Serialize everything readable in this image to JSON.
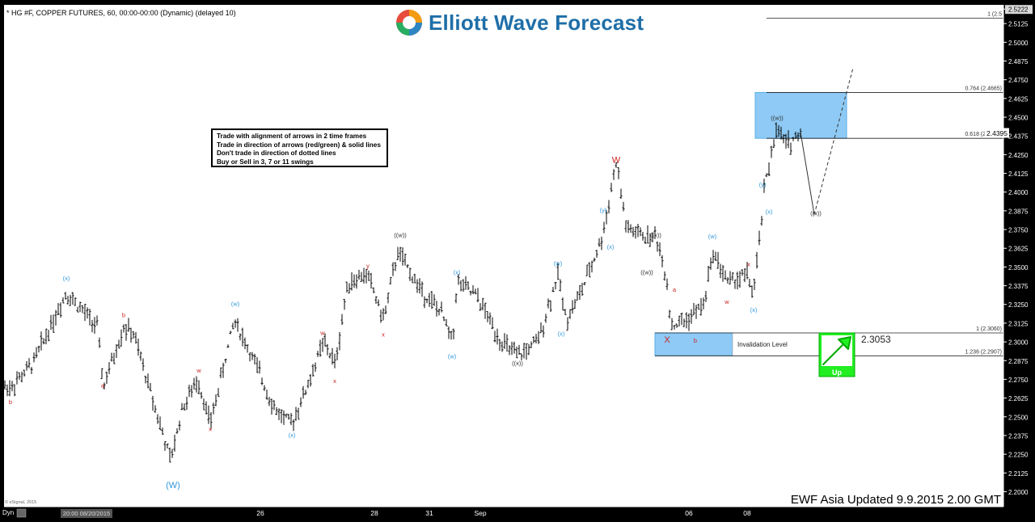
{
  "header": {
    "symbol_title": "* HG #F, COPPER FUTURES, 60, 00:00-00:00 (Dynamic) (delayed 10)",
    "brand": "Elliott Wave Forecast"
  },
  "legend": {
    "lines": [
      "Trade with alignment of arrows in 2 time frames",
      "Trade in direction of arrows (red/green) & solid lines",
      "Don't trade in direction of dotted lines",
      "Buy or Sell in 3, 7 or 11 swings"
    ]
  },
  "footer": {
    "update_text": "EWF Asia Updated 9.9.2015 2.00 GMT",
    "copyright": "© eSignal, 2015",
    "dyn_label": "Dyn",
    "cursor_label": "20:00 08/20/2015"
  },
  "colors": {
    "background": "#ffffff",
    "price_bars": "#000000",
    "wave_red": "#cc2222",
    "wave_blue": "#3399dd",
    "target_box": "#8ecaf5",
    "up_arrow": "#22ee22"
  },
  "chart_data": {
    "type": "bar",
    "subtype": "ohlc-intraday",
    "ylim": [
      2.19,
      2.525
    ],
    "y_ticks": [
      "2.5222",
      "2.5125",
      "2.5000",
      "2.4875",
      "2.4750",
      "2.4625",
      "2.4500",
      "2.4375",
      "2.4250",
      "2.4125",
      "2.4000",
      "2.3875",
      "2.3750",
      "2.3625",
      "2.3500",
      "2.3375",
      "2.3250",
      "2.3125",
      "2.3000",
      "2.2875",
      "2.2750",
      "2.2625",
      "2.2500",
      "2.2375",
      "2.2250",
      "2.2125",
      "2.2000"
    ],
    "x_ticks": [
      "26",
      "28",
      "31",
      "Sep",
      "06",
      "08"
    ],
    "last_price_label": "2.4395",
    "last_price": 2.4395,
    "price_path": [
      {
        "t": 0,
        "p": 2.28
      },
      {
        "t": 5,
        "p": 2.27
      },
      {
        "t": 14,
        "p": 2.27
      },
      {
        "t": 40,
        "p": 2.285
      },
      {
        "t": 82,
        "p": 2.333
      },
      {
        "t": 100,
        "p": 2.322
      },
      {
        "t": 120,
        "p": 2.31
      },
      {
        "t": 128,
        "p": 2.27
      },
      {
        "t": 153,
        "p": 2.31
      },
      {
        "t": 165,
        "p": 2.305
      },
      {
        "t": 190,
        "p": 2.26
      },
      {
        "t": 211,
        "p": 2.22
      },
      {
        "t": 225,
        "p": 2.255
      },
      {
        "t": 245,
        "p": 2.275
      },
      {
        "t": 260,
        "p": 2.245
      },
      {
        "t": 290,
        "p": 2.315
      },
      {
        "t": 320,
        "p": 2.28
      },
      {
        "t": 340,
        "p": 2.255
      },
      {
        "t": 360,
        "p": 2.245
      },
      {
        "t": 380,
        "p": 2.27
      },
      {
        "t": 400,
        "p": 2.3
      },
      {
        "t": 415,
        "p": 2.285
      },
      {
        "t": 430,
        "p": 2.34
      },
      {
        "t": 455,
        "p": 2.345
      },
      {
        "t": 474,
        "p": 2.315
      },
      {
        "t": 492,
        "p": 2.36
      },
      {
        "t": 520,
        "p": 2.335
      },
      {
        "t": 545,
        "p": 2.32
      },
      {
        "t": 560,
        "p": 2.3
      },
      {
        "t": 565,
        "p": 2.34
      },
      {
        "t": 590,
        "p": 2.33
      },
      {
        "t": 620,
        "p": 2.3
      },
      {
        "t": 640,
        "p": 2.29
      },
      {
        "t": 665,
        "p": 2.3
      },
      {
        "t": 690,
        "p": 2.345
      },
      {
        "t": 700,
        "p": 2.315
      },
      {
        "t": 720,
        "p": 2.335
      },
      {
        "t": 745,
        "p": 2.37
      },
      {
        "t": 762,
        "p": 2.42
      },
      {
        "t": 775,
        "p": 2.375
      },
      {
        "t": 800,
        "p": 2.37
      },
      {
        "t": 812,
        "p": 2.37
      },
      {
        "t": 825,
        "p": 2.34
      },
      {
        "t": 830,
        "p": 2.31
      },
      {
        "t": 850,
        "p": 2.315
      },
      {
        "t": 870,
        "p": 2.325
      },
      {
        "t": 882,
        "p": 2.36
      },
      {
        "t": 900,
        "p": 2.34
      },
      {
        "t": 925,
        "p": 2.345
      },
      {
        "t": 932,
        "p": 2.33
      },
      {
        "t": 945,
        "p": 2.4
      },
      {
        "t": 955,
        "p": 2.43
      },
      {
        "t": 960,
        "p": 2.44
      },
      {
        "t": 975,
        "p": 2.432
      },
      {
        "t": 990,
        "p": 2.44
      }
    ],
    "projection": [
      {
        "label": "solid",
        "from": {
          "t": 990,
          "p": 2.44
        },
        "to": {
          "t": 1007,
          "p": 2.385
        }
      },
      {
        "label": "dashed",
        "from": {
          "t": 1007,
          "p": 2.385
        },
        "to": {
          "t": 1055,
          "p": 2.483
        }
      }
    ],
    "fib_levels": [
      {
        "label": "1 (2.5",
        "value": 2.5161
      },
      {
        "label": "0.764 (2.4665)",
        "value": 2.4665
      },
      {
        "label": "0.618 (2.4359)",
        "value": 2.4359
      },
      {
        "label": "1 (2.3060)",
        "value": 2.306
      },
      {
        "label": "1.236 (2.2907)",
        "value": 2.2907
      }
    ],
    "zones": [
      {
        "name": "target",
        "from": 2.4359,
        "to": 2.4665
      },
      {
        "name": "invalidation",
        "from": 2.2907,
        "to": 2.306,
        "label": "Invalidation Level",
        "value_label": "2.3053"
      }
    ],
    "signal": {
      "label": "Up",
      "direction": "up"
    },
    "wave_labels": [
      {
        "text": "(W)",
        "t": 214,
        "p": 2.2025,
        "color": "blue",
        "size": "large"
      },
      {
        "text": "W",
        "t": 762,
        "p": 2.4195,
        "color": "red",
        "size": "large"
      },
      {
        "text": "X",
        "t": 825,
        "p": 2.2995,
        "color": "red",
        "size": "large"
      },
      {
        "text": "((w))",
        "t": 961,
        "p": 2.448,
        "color": "dark"
      },
      {
        "text": "((x))",
        "t": 1009,
        "p": 2.3845,
        "color": "dark"
      },
      {
        "text": "((w))",
        "t": 495,
        "p": 2.37,
        "color": "dark"
      },
      {
        "text": "((x))",
        "t": 640,
        "p": 2.2845,
        "color": "dark"
      },
      {
        "text": "((x))",
        "t": 811,
        "p": 2.37,
        "color": "dark"
      },
      {
        "text": "((w))",
        "t": 800,
        "p": 2.345,
        "color": "dark"
      },
      {
        "text": "(x)",
        "t": 82,
        "p": 2.341,
        "color": "blue"
      },
      {
        "text": "(w)",
        "t": 291,
        "p": 2.324,
        "color": "blue"
      },
      {
        "text": "(x)",
        "t": 361,
        "p": 2.2365,
        "color": "blue"
      },
      {
        "text": "(x)",
        "t": 565,
        "p": 2.345,
        "color": "blue"
      },
      {
        "text": "(w)",
        "t": 559,
        "p": 2.289,
        "color": "blue"
      },
      {
        "text": "(w)",
        "t": 690,
        "p": 2.351,
        "color": "blue"
      },
      {
        "text": "(x)",
        "t": 694,
        "p": 2.304,
        "color": "blue"
      },
      {
        "text": "(y)",
        "t": 746,
        "p": 2.3865,
        "color": "blue"
      },
      {
        "text": "(x)",
        "t": 755,
        "p": 2.362,
        "color": "blue"
      },
      {
        "text": "(w)",
        "t": 881,
        "p": 2.369,
        "color": "blue"
      },
      {
        "text": "(x)",
        "t": 932,
        "p": 2.32,
        "color": "blue"
      },
      {
        "text": "(y)",
        "t": 943,
        "p": 2.4035,
        "color": "blue"
      },
      {
        "text": "(x)",
        "t": 951,
        "p": 2.3855,
        "color": "blue"
      },
      {
        "text": "b",
        "t": 13,
        "p": 2.2585,
        "color": "red"
      },
      {
        "text": "b",
        "t": 153,
        "p": 2.3165,
        "color": "red"
      },
      {
        "text": "a",
        "t": 127,
        "p": 2.2695,
        "color": "red"
      },
      {
        "text": "w",
        "t": 246,
        "p": 2.2795,
        "color": "red"
      },
      {
        "text": "x",
        "t": 260,
        "p": 2.2405,
        "color": "red"
      },
      {
        "text": "w",
        "t": 399,
        "p": 2.3045,
        "color": "red"
      },
      {
        "text": "x",
        "t": 414,
        "p": 2.2725,
        "color": "red"
      },
      {
        "text": "y",
        "t": 455,
        "p": 2.3495,
        "color": "red"
      },
      {
        "text": "x",
        "t": 474,
        "p": 2.3035,
        "color": "red"
      },
      {
        "text": "a",
        "t": 834,
        "p": 2.3335,
        "color": "red"
      },
      {
        "text": "b",
        "t": 860,
        "p": 2.2995,
        "color": "red"
      },
      {
        "text": "w",
        "t": 899,
        "p": 2.3255,
        "color": "red"
      },
      {
        "text": "x",
        "t": 926,
        "p": 2.3505,
        "color": "red"
      }
    ]
  }
}
